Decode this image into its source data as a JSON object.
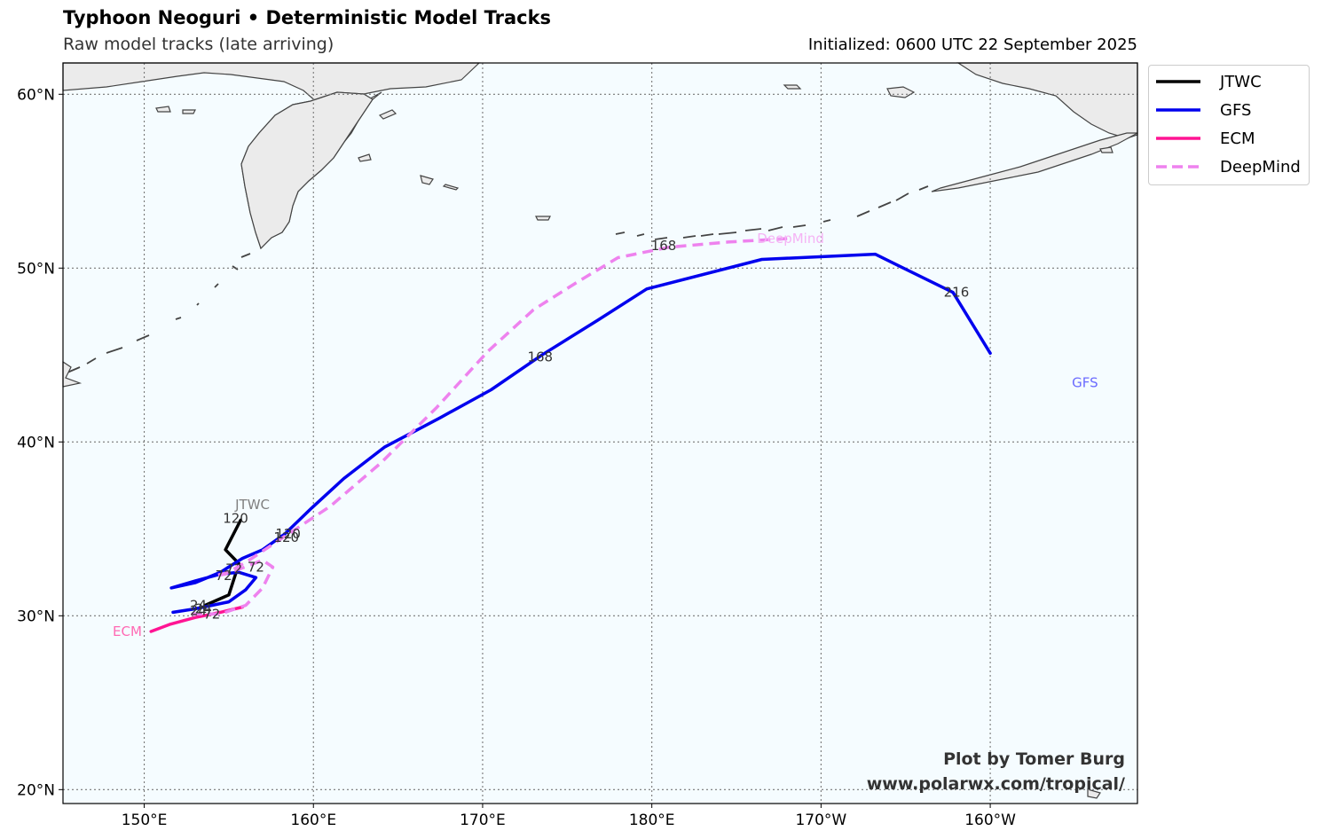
{
  "header": {
    "title": "Typhoon Neoguri • Deterministic Model Tracks",
    "subtitle": "Raw model tracks (late arriving)",
    "initialized": "Initialized: 0600 UTC 22 September 2025"
  },
  "credits": {
    "line1": "Plot by Tomer Burg",
    "line2": "www.polarwx.com/tropical/"
  },
  "map": {
    "lon_range": [
      145.2,
      208.7
    ],
    "lat_range": [
      19.2,
      61.8
    ],
    "ocean_color": "#f5fcff",
    "land_color": "#ebebeb",
    "grid_lats": [
      20,
      30,
      40,
      50,
      60
    ],
    "grid_lons": [
      150,
      160,
      170,
      180,
      190,
      200
    ],
    "lat_labels": [
      "20°N",
      "30°N",
      "40°N",
      "50°N",
      "60°N"
    ],
    "lon_labels": [
      "150°E",
      "160°E",
      "170°E",
      "180°E",
      "170°W",
      "160°W"
    ]
  },
  "legend": [
    {
      "label": "JTWC",
      "color": "#000000",
      "dashed": false
    },
    {
      "label": "GFS",
      "color": "#0000ee",
      "dashed": false
    },
    {
      "label": "ECM",
      "color": "#ff1493",
      "dashed": false
    },
    {
      "label": "DeepMind",
      "color": "#ee82ee",
      "dashed": true
    }
  ],
  "tracks": [
    {
      "model": "JTWC",
      "color": "#000000",
      "dashed": false,
      "end_label": "JTWC",
      "end_label_color": "#808080",
      "end_label_lon": 156.4,
      "end_label_lat": 36.4,
      "points": [
        [
          153.6,
          30.6
        ],
        [
          155.0,
          31.2
        ],
        [
          155.6,
          33.0
        ],
        [
          154.8,
          33.8
        ],
        [
          155.7,
          35.5
        ]
      ],
      "hour_labels": [
        {
          "text": "24",
          "lon": 153.2,
          "lat": 30.6
        },
        {
          "text": "72",
          "lon": 155.3,
          "lat": 32.7
        },
        {
          "text": "120",
          "lon": 155.4,
          "lat": 35.6
        }
      ]
    },
    {
      "model": "GFS",
      "color": "#0000ee",
      "dashed": false,
      "end_label": "GFS",
      "end_label_color": "#6b6bff",
      "end_label_lon": 205.6,
      "end_label_lat": 43.4,
      "points": [
        [
          151.7,
          30.2
        ],
        [
          153.0,
          30.4
        ],
        [
          155.0,
          30.8
        ],
        [
          156.0,
          31.5
        ],
        [
          156.6,
          32.2
        ],
        [
          155.6,
          32.5
        ],
        [
          154.5,
          32.4
        ],
        [
          153.0,
          32.0
        ],
        [
          151.6,
          31.6
        ],
        [
          153.0,
          31.9
        ],
        [
          154.5,
          32.5
        ],
        [
          155.8,
          33.3
        ],
        [
          157.0,
          33.8
        ],
        [
          158.3,
          34.7
        ],
        [
          159.9,
          36.2
        ],
        [
          161.8,
          37.9
        ],
        [
          164.2,
          39.7
        ],
        [
          167.5,
          41.4
        ],
        [
          170.5,
          43.0
        ],
        [
          173.5,
          45.0
        ],
        [
          176.8,
          47.0
        ],
        [
          179.7,
          48.8
        ],
        [
          186.5,
          50.5
        ],
        [
          193.2,
          50.8
        ],
        [
          197.8,
          48.6
        ],
        [
          200.0,
          45.1
        ]
      ],
      "hour_labels": [
        {
          "text": "24",
          "lon": 153.5,
          "lat": 30.4
        },
        {
          "text": "72",
          "lon": 154.7,
          "lat": 32.3
        },
        {
          "text": "120",
          "lon": 158.4,
          "lat": 34.5
        },
        {
          "text": "168",
          "lon": 173.4,
          "lat": 44.9
        },
        {
          "text": "216",
          "lon": 198.0,
          "lat": 48.6
        }
      ]
    },
    {
      "model": "ECM",
      "color": "#ff1493",
      "dashed": false,
      "end_label": "ECM",
      "end_label_color": "#ff69b4",
      "end_label_lon": 149.0,
      "end_label_lat": 29.1,
      "points": [
        [
          155.8,
          30.5
        ],
        [
          154.5,
          30.2
        ],
        [
          153.0,
          29.9
        ],
        [
          151.5,
          29.5
        ],
        [
          150.4,
          29.1
        ]
      ],
      "hour_labels": [
        {
          "text": "24",
          "lon": 153.2,
          "lat": 30.3
        },
        {
          "text": "72",
          "lon": 154.0,
          "lat": 30.1
        }
      ]
    },
    {
      "model": "DeepMind",
      "color": "#ee82ee",
      "dashed": true,
      "end_label": "DeepMind",
      "end_label_color": "#f5b3f5",
      "end_label_lon": 188.2,
      "end_label_lat": 51.7,
      "points": [
        [
          152.8,
          30.1
        ],
        [
          154.5,
          30.1
        ],
        [
          156.0,
          30.6
        ],
        [
          157.0,
          31.6
        ],
        [
          157.6,
          32.8
        ],
        [
          157.0,
          33.2
        ],
        [
          155.4,
          32.6
        ],
        [
          154.2,
          32.3
        ],
        [
          154.8,
          32.4
        ],
        [
          156.2,
          33.2
        ],
        [
          158.2,
          34.5
        ],
        [
          161.0,
          36.3
        ],
        [
          164.0,
          38.8
        ],
        [
          167.3,
          42.0
        ],
        [
          170.3,
          45.2
        ],
        [
          173.0,
          47.6
        ],
        [
          175.6,
          49.2
        ],
        [
          178.0,
          50.6
        ],
        [
          181.0,
          51.2
        ],
        [
          184.5,
          51.5
        ],
        [
          188.0,
          51.7
        ]
      ],
      "hour_labels": [
        {
          "text": "72",
          "lon": 156.6,
          "lat": 32.8
        },
        {
          "text": "120",
          "lon": 158.5,
          "lat": 34.7
        },
        {
          "text": "168",
          "lon": 180.7,
          "lat": 51.3
        }
      ]
    }
  ]
}
